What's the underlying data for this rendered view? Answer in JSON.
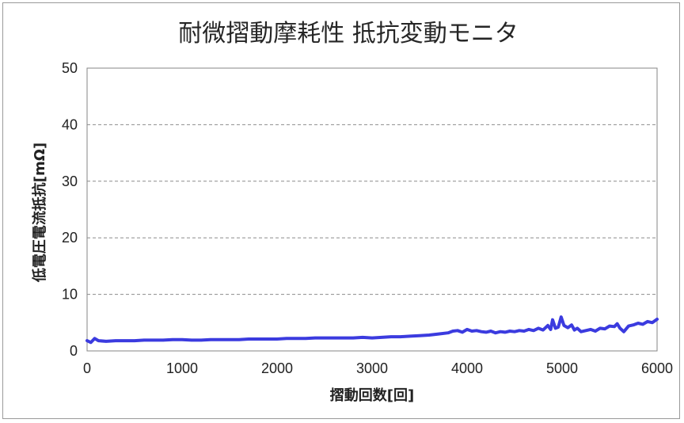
{
  "chart_data": {
    "type": "line",
    "title": "耐微摺動摩耗性 抵抗変動モニタ",
    "xlabel": "摺動回数[回]",
    "ylabel": "低電圧電流抵抗[mΩ]",
    "xlim": [
      0,
      6000
    ],
    "ylim": [
      0,
      50
    ],
    "x_ticks": [
      "0",
      "1000",
      "2000",
      "3000",
      "4000",
      "5000",
      "6000"
    ],
    "y_ticks": [
      "0",
      "10",
      "20",
      "30",
      "40",
      "50"
    ],
    "grid": "horizontal-dashed",
    "series": [
      {
        "color": "#3b3bdf",
        "points": [
          [
            0,
            1.8
          ],
          [
            40,
            1.5
          ],
          [
            80,
            2.2
          ],
          [
            120,
            1.8
          ],
          [
            200,
            1.7
          ],
          [
            300,
            1.8
          ],
          [
            400,
            1.8
          ],
          [
            500,
            1.8
          ],
          [
            600,
            1.9
          ],
          [
            700,
            1.9
          ],
          [
            800,
            1.9
          ],
          [
            900,
            2.0
          ],
          [
            1000,
            2.0
          ],
          [
            1100,
            1.9
          ],
          [
            1200,
            1.9
          ],
          [
            1300,
            2.0
          ],
          [
            1400,
            2.0
          ],
          [
            1500,
            2.0
          ],
          [
            1600,
            2.0
          ],
          [
            1700,
            2.1
          ],
          [
            1800,
            2.1
          ],
          [
            1900,
            2.1
          ],
          [
            2000,
            2.1
          ],
          [
            2100,
            2.2
          ],
          [
            2200,
            2.2
          ],
          [
            2300,
            2.2
          ],
          [
            2400,
            2.3
          ],
          [
            2500,
            2.3
          ],
          [
            2600,
            2.3
          ],
          [
            2700,
            2.3
          ],
          [
            2800,
            2.3
          ],
          [
            2900,
            2.4
          ],
          [
            3000,
            2.3
          ],
          [
            3100,
            2.4
          ],
          [
            3200,
            2.5
          ],
          [
            3300,
            2.5
          ],
          [
            3400,
            2.6
          ],
          [
            3500,
            2.7
          ],
          [
            3600,
            2.8
          ],
          [
            3700,
            3.0
          ],
          [
            3800,
            3.2
          ],
          [
            3850,
            3.5
          ],
          [
            3900,
            3.6
          ],
          [
            3950,
            3.3
          ],
          [
            4000,
            3.8
          ],
          [
            4050,
            3.5
          ],
          [
            4100,
            3.6
          ],
          [
            4150,
            3.4
          ],
          [
            4200,
            3.3
          ],
          [
            4250,
            3.5
          ],
          [
            4300,
            3.2
          ],
          [
            4350,
            3.4
          ],
          [
            4400,
            3.3
          ],
          [
            4450,
            3.5
          ],
          [
            4500,
            3.4
          ],
          [
            4550,
            3.6
          ],
          [
            4600,
            3.5
          ],
          [
            4650,
            3.8
          ],
          [
            4700,
            3.6
          ],
          [
            4750,
            4.0
          ],
          [
            4800,
            3.7
          ],
          [
            4850,
            4.5
          ],
          [
            4880,
            3.8
          ],
          [
            4900,
            5.5
          ],
          [
            4930,
            4.0
          ],
          [
            4960,
            4.2
          ],
          [
            4990,
            6.0
          ],
          [
            5020,
            4.5
          ],
          [
            5060,
            4.1
          ],
          [
            5100,
            4.6
          ],
          [
            5130,
            3.7
          ],
          [
            5160,
            4.0
          ],
          [
            5200,
            3.4
          ],
          [
            5250,
            3.6
          ],
          [
            5300,
            3.8
          ],
          [
            5350,
            3.5
          ],
          [
            5400,
            4.0
          ],
          [
            5450,
            3.9
          ],
          [
            5500,
            4.4
          ],
          [
            5550,
            4.3
          ],
          [
            5580,
            4.8
          ],
          [
            5610,
            4.0
          ],
          [
            5650,
            3.4
          ],
          [
            5700,
            4.4
          ],
          [
            5750,
            4.6
          ],
          [
            5800,
            4.9
          ],
          [
            5850,
            4.7
          ],
          [
            5900,
            5.2
          ],
          [
            5950,
            5.0
          ],
          [
            6000,
            5.6
          ]
        ]
      }
    ]
  }
}
